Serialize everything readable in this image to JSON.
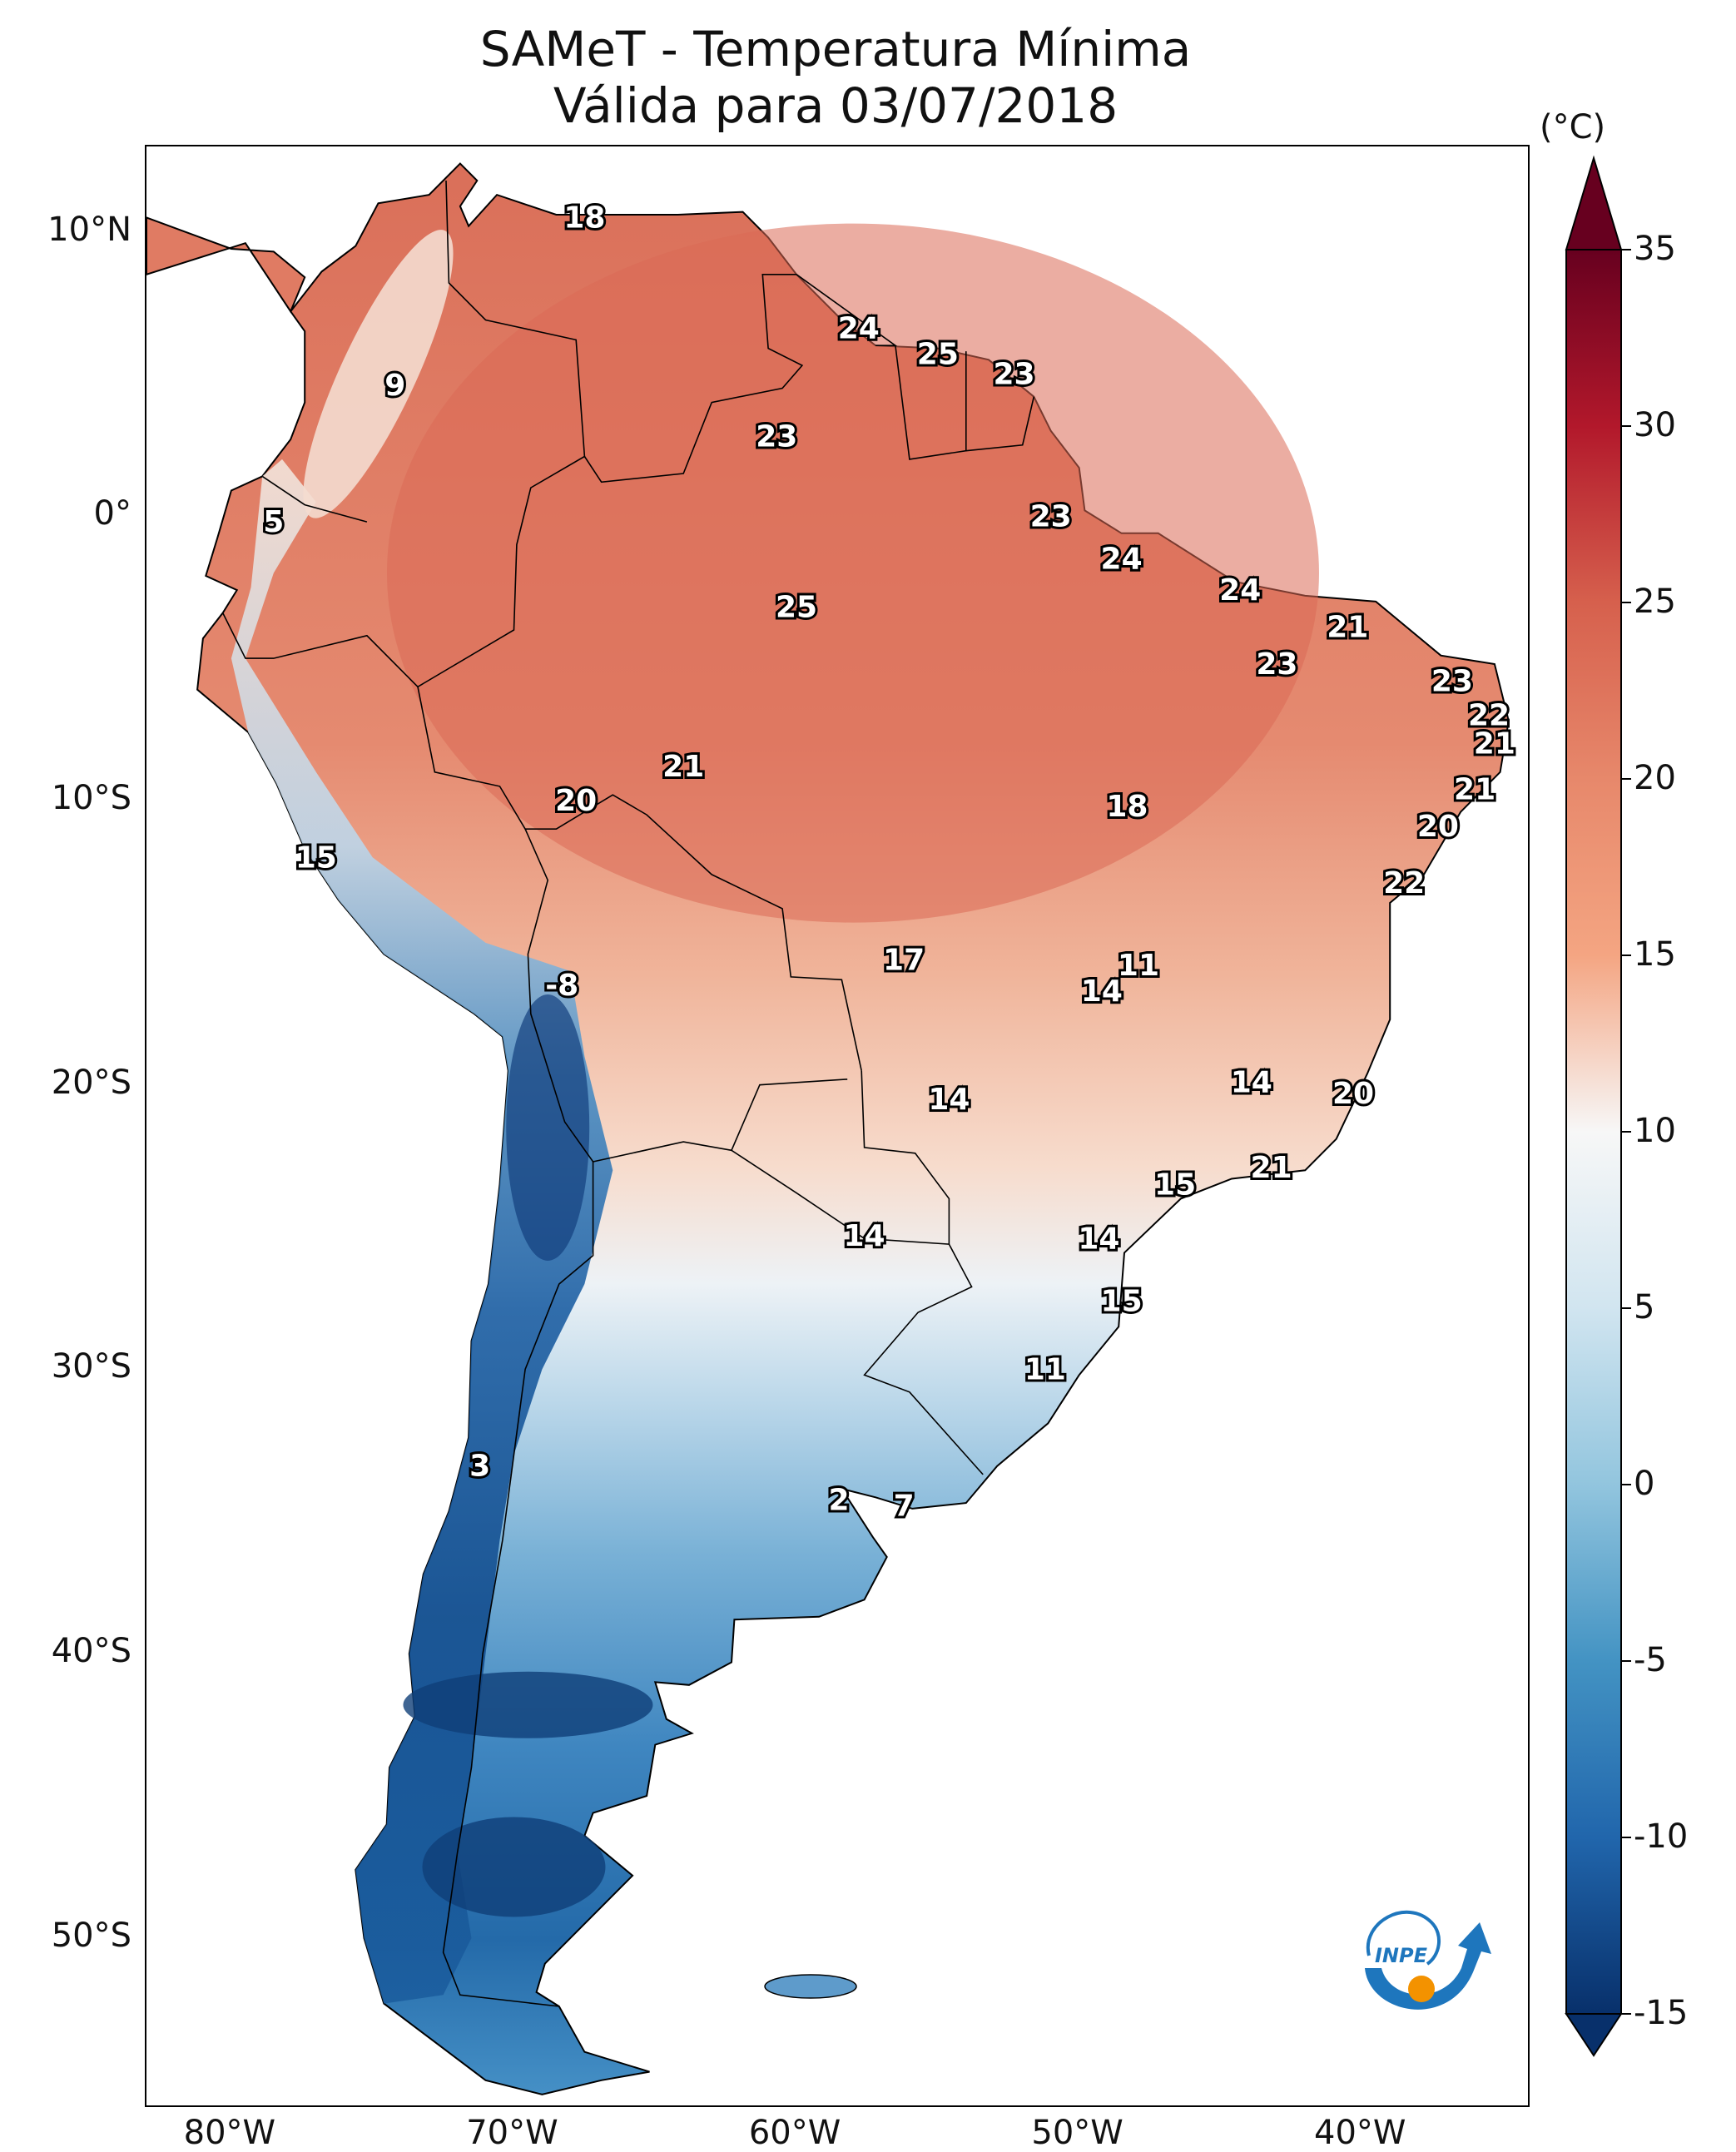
{
  "title": {
    "line1": "SAMeT - Temperatura Mínima",
    "line2": "Válida para 03/07/2018"
  },
  "axes": {
    "lat_ticks": [
      "10°N",
      "0°",
      "10°S",
      "20°S",
      "30°S",
      "40°S",
      "50°S"
    ],
    "lat_values": [
      10,
      0,
      -10,
      -20,
      -30,
      -40,
      -50
    ],
    "lon_ticks": [
      "80°W",
      "70°W",
      "60°W",
      "50°W",
      "40°W"
    ],
    "lon_values": [
      -80,
      -70,
      -60,
      -50,
      -40
    ],
    "lon_range": [
      -83,
      -34
    ],
    "lat_range": [
      -56,
      13
    ]
  },
  "colorbar": {
    "unit": "(°C)",
    "ticks": [
      "35",
      "30",
      "25",
      "20",
      "15",
      "10",
      "5",
      "0",
      "-5",
      "-10",
      "-15"
    ],
    "tick_values": [
      35,
      30,
      25,
      20,
      15,
      10,
      5,
      0,
      -5,
      -10,
      -15
    ],
    "range": [
      -15,
      35
    ],
    "extend": "both",
    "colors": {
      "cold_extreme": "#08306b",
      "cold": "#2166ac",
      "cool": "#92c5de",
      "neutral": "#f7f7f7",
      "warm": "#f4a582",
      "hot": "#d6604d",
      "hot_extreme": "#67001f"
    }
  },
  "point_values": [
    {
      "text": "18",
      "lon": -67.5,
      "lat": 10.5,
      "v": 18
    },
    {
      "text": "24",
      "lon": -57.8,
      "lat": 6.6,
      "v": 24
    },
    {
      "text": "25",
      "lon": -55.0,
      "lat": 5.7,
      "v": 25
    },
    {
      "text": "23",
      "lon": -52.3,
      "lat": 5.0,
      "v": 23
    },
    {
      "text": "9",
      "lon": -74.2,
      "lat": 4.6,
      "v": 9
    },
    {
      "text": "23",
      "lon": -60.7,
      "lat": 2.8,
      "v": 23
    },
    {
      "text": "5",
      "lon": -78.5,
      "lat": -0.2,
      "v": 5
    },
    {
      "text": "23",
      "lon": -51.0,
      "lat": 0.0,
      "v": 23
    },
    {
      "text": "24",
      "lon": -48.5,
      "lat": -1.5,
      "v": 24
    },
    {
      "text": "24",
      "lon": -44.3,
      "lat": -2.6,
      "v": 24
    },
    {
      "text": "25",
      "lon": -60.0,
      "lat": -3.2,
      "v": 25
    },
    {
      "text": "21",
      "lon": -40.5,
      "lat": -3.9,
      "v": 21
    },
    {
      "text": "23",
      "lon": -43.0,
      "lat": -5.2,
      "v": 23
    },
    {
      "text": "23",
      "lon": -36.8,
      "lat": -5.8,
      "v": 23
    },
    {
      "text": "22",
      "lon": -35.5,
      "lat": -7.0,
      "v": 22
    },
    {
      "text": "21",
      "lon": -35.3,
      "lat": -8.0,
      "v": 21
    },
    {
      "text": "21",
      "lon": -64.0,
      "lat": -8.8,
      "v": 21
    },
    {
      "text": "21",
      "lon": -36.0,
      "lat": -9.6,
      "v": 21
    },
    {
      "text": "20",
      "lon": -67.8,
      "lat": -10.0,
      "v": 20
    },
    {
      "text": "18",
      "lon": -48.3,
      "lat": -10.2,
      "v": 18
    },
    {
      "text": "20",
      "lon": -37.3,
      "lat": -10.9,
      "v": 20
    },
    {
      "text": "15",
      "lon": -77.0,
      "lat": -12.0,
      "v": 15
    },
    {
      "text": "22",
      "lon": -38.5,
      "lat": -12.9,
      "v": 22
    },
    {
      "text": "17",
      "lon": -56.2,
      "lat": -15.6,
      "v": 17
    },
    {
      "text": "11",
      "lon": -47.9,
      "lat": -15.8,
      "v": 11
    },
    {
      "text": "-8",
      "lon": -68.3,
      "lat": -16.5,
      "v": -8
    },
    {
      "text": "14",
      "lon": -49.2,
      "lat": -16.7,
      "v": 14
    },
    {
      "text": "14",
      "lon": -43.9,
      "lat": -19.9,
      "v": 14
    },
    {
      "text": "20",
      "lon": -40.3,
      "lat": -20.3,
      "v": 20
    },
    {
      "text": "14",
      "lon": -54.6,
      "lat": -20.5,
      "v": 14
    },
    {
      "text": "21",
      "lon": -43.2,
      "lat": -22.9,
      "v": 21
    },
    {
      "text": "15",
      "lon": -46.6,
      "lat": -23.5,
      "v": 15
    },
    {
      "text": "14",
      "lon": -57.6,
      "lat": -25.3,
      "v": 14
    },
    {
      "text": "14",
      "lon": -49.3,
      "lat": -25.4,
      "v": 14
    },
    {
      "text": "15",
      "lon": -48.5,
      "lat": -27.6,
      "v": 15
    },
    {
      "text": "11",
      "lon": -51.2,
      "lat": -30.0,
      "v": 11
    },
    {
      "text": "3",
      "lon": -71.2,
      "lat": -33.4,
      "v": 3
    },
    {
      "text": "2",
      "lon": -58.5,
      "lat": -34.6,
      "v": 2
    },
    {
      "text": "7",
      "lon": -56.2,
      "lat": -34.8,
      "v": 7
    }
  ],
  "logo": {
    "text": "INPE",
    "colors": {
      "blue": "#1e76bd",
      "orange": "#f39200"
    }
  }
}
